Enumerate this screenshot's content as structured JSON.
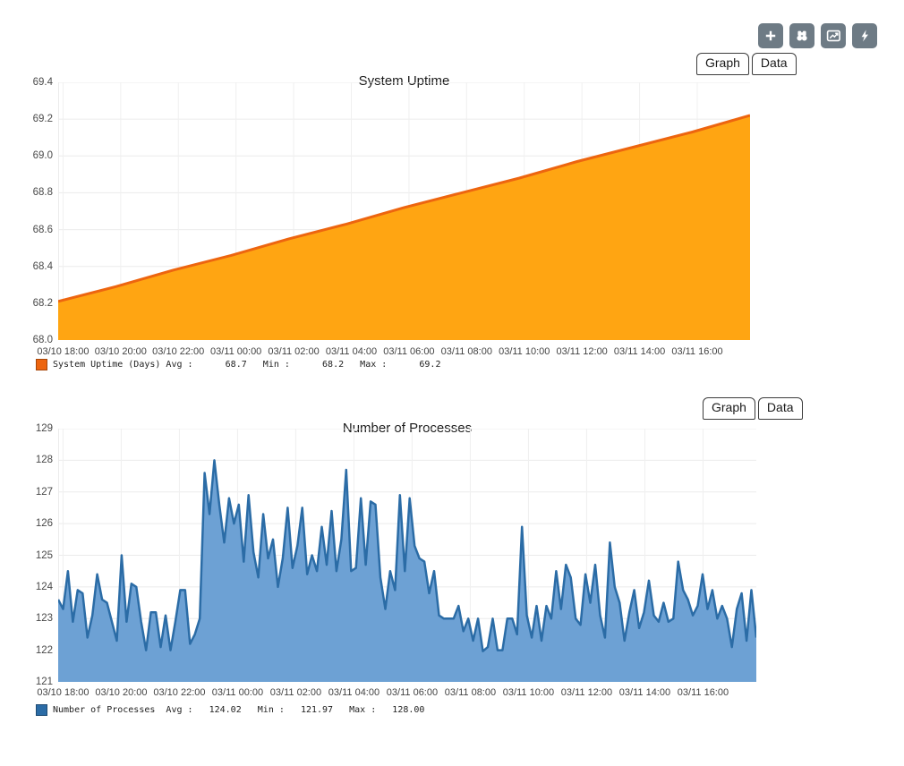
{
  "toolbar": {
    "bg_color": "#6e7b85",
    "buttons": [
      {
        "name": "add",
        "icon": "plus-icon"
      },
      {
        "name": "find",
        "icon": "binoculars-icon"
      },
      {
        "name": "graphs",
        "icon": "trend-chart-icon"
      },
      {
        "name": "actions",
        "icon": "lightning-bolt-icon"
      }
    ]
  },
  "tabs": {
    "graph": "Graph",
    "data": "Data"
  },
  "chart_data": [
    {
      "type": "area",
      "title": "System Uptime",
      "ylim": [
        68.0,
        69.4
      ],
      "y_tick_labels": [
        "69.4",
        "69.2",
        "69.0",
        "68.8",
        "68.6",
        "68.4",
        "68.2",
        "68.0"
      ],
      "x_tick_labels": [
        "03/10 18:00",
        "03/10 20:00",
        "03/10 22:00",
        "03/11 00:00",
        "03/11 02:00",
        "03/11 04:00",
        "03/11 06:00",
        "03/11 08:00",
        "03/11 10:00",
        "03/11 12:00",
        "03/11 14:00",
        "03/11 16:00"
      ],
      "grid": true,
      "legend_position": "bottom-left",
      "series": [
        {
          "name": "System Uptime (Days)",
          "stroke": "#ed650f",
          "fill": "#ffa512",
          "values": [
            68.21,
            68.29,
            68.38,
            68.46,
            68.55,
            68.63,
            68.72,
            68.8,
            68.88,
            68.97,
            69.05,
            69.13,
            69.22
          ]
        }
      ],
      "stats": {
        "avg": 68.7,
        "min": 68.2,
        "max": 69.2
      },
      "legend_text": "System Uptime (Days) Avg :      68.7   Min :      68.2   Max :      69.2"
    },
    {
      "type": "area",
      "title": "Number of Processes",
      "ylim": [
        121,
        129
      ],
      "y_tick_labels": [
        "129",
        "128",
        "127",
        "126",
        "125",
        "124",
        "123",
        "122",
        "121"
      ],
      "x_tick_labels": [
        "03/10 18:00",
        "03/10 20:00",
        "03/10 22:00",
        "03/11 00:00",
        "03/11 02:00",
        "03/11 04:00",
        "03/11 06:00",
        "03/11 08:00",
        "03/11 10:00",
        "03/11 12:00",
        "03/11 14:00",
        "03/11 16:00"
      ],
      "grid": true,
      "legend_position": "bottom-left",
      "series": [
        {
          "name": "Number of Processes",
          "stroke": "#2b6ca6",
          "fill": "#6da1d4",
          "values": [
            123.6,
            123.3,
            124.5,
            122.9,
            123.9,
            123.8,
            122.4,
            123.1,
            124.4,
            123.6,
            123.5,
            122.9,
            122.3,
            125.0,
            122.9,
            124.1,
            124.0,
            122.9,
            122.0,
            123.2,
            123.2,
            122.1,
            123.1,
            122.0,
            122.9,
            123.9,
            123.9,
            122.2,
            122.5,
            123.0,
            127.6,
            126.3,
            128.0,
            126.6,
            125.4,
            126.8,
            126.0,
            126.6,
            124.8,
            126.9,
            125.1,
            124.3,
            126.3,
            124.9,
            125.5,
            124.0,
            124.9,
            126.5,
            124.6,
            125.3,
            126.5,
            124.4,
            125.0,
            124.5,
            125.9,
            124.7,
            126.4,
            124.5,
            125.5,
            127.7,
            124.5,
            124.6,
            126.8,
            124.7,
            126.7,
            126.6,
            124.3,
            123.3,
            124.5,
            123.9,
            126.9,
            124.5,
            126.8,
            125.3,
            124.9,
            124.8,
            123.8,
            124.5,
            123.1,
            123.0,
            123.0,
            123.0,
            123.4,
            122.6,
            123.0,
            122.3,
            123.0,
            121.97,
            122.1,
            123.0,
            122.0,
            122.0,
            123.0,
            123.0,
            122.5,
            125.9,
            123.1,
            122.4,
            123.4,
            122.3,
            123.4,
            123.0,
            124.5,
            123.3,
            124.7,
            124.3,
            123.0,
            122.8,
            124.4,
            123.5,
            124.7,
            123.1,
            122.4,
            125.4,
            124.0,
            123.5,
            122.3,
            123.2,
            123.9,
            122.7,
            123.2,
            124.2,
            123.1,
            122.9,
            123.5,
            122.9,
            123.0,
            124.8,
            123.9,
            123.6,
            123.1,
            123.4,
            124.4,
            123.3,
            123.9,
            123.0,
            123.4,
            123.0,
            122.1,
            123.3,
            123.8,
            122.3,
            123.9,
            122.4
          ]
        }
      ],
      "stats": {
        "avg": 124.02,
        "min": 121.97,
        "max": 128.0
      },
      "legend_text": "Number of Processes  Avg :   124.02   Min :   121.97   Max :   128.00"
    }
  ]
}
